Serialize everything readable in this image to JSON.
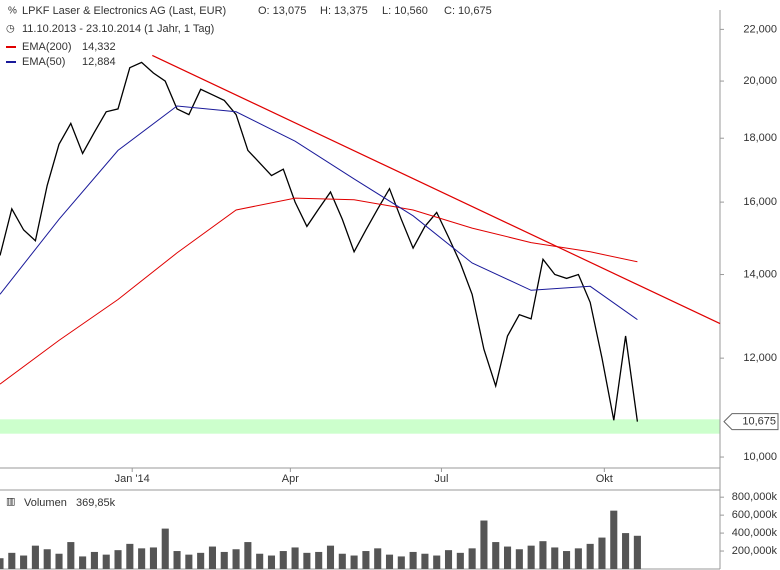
{
  "chart_data": [
    {
      "type": "line",
      "title": "LPKF Laser & Electronics AG (Last, EUR)",
      "quote": [
        "O: 13,075",
        "H: 13,375",
        "L: 10,560",
        "C: 10,675"
      ],
      "period": "11.10.2013 - 23.10.2014 (1 Jahr, 1 Tag)",
      "log_scale": true,
      "xlim": [
        0,
        61
      ],
      "ylim": [
        9800,
        22800
      ],
      "xticks": [
        {
          "value": 11.2,
          "label": "Jan '14"
        },
        {
          "value": 24.6,
          "label": "Apr"
        },
        {
          "value": 37.4,
          "label": "Jul"
        },
        {
          "value": 51.2,
          "label": "Okt"
        }
      ],
      "yticks": [
        {
          "value": 10000,
          "label": "10,000"
        },
        {
          "value": 12000,
          "label": "12,000"
        },
        {
          "value": 14000,
          "label": "14,000"
        },
        {
          "value": 16000,
          "label": "16,000"
        },
        {
          "value": 18000,
          "label": "18,000"
        },
        {
          "value": 20000,
          "label": "20,000"
        },
        {
          "value": 22000,
          "label": "22,000"
        }
      ],
      "series": [
        {
          "color": "#000000",
          "x": [
            0,
            1,
            2,
            3,
            4,
            5,
            6,
            7,
            8,
            9,
            10,
            11,
            12,
            13,
            14,
            15,
            16,
            17,
            18,
            19,
            20,
            21,
            22,
            23,
            24,
            25,
            26,
            27,
            28,
            29,
            30,
            31,
            32,
            33,
            34,
            35,
            36,
            37,
            38,
            39,
            40,
            41,
            42,
            43,
            44,
            45,
            46,
            47,
            48,
            49,
            50,
            51,
            52,
            53,
            54
          ],
          "values": [
            14500,
            15800,
            15200,
            14900,
            16500,
            17800,
            18500,
            17500,
            18200,
            18900,
            19000,
            20500,
            20700,
            20300,
            20000,
            19000,
            18800,
            19700,
            19500,
            19300,
            18800,
            17600,
            17200,
            16800,
            17000,
            16000,
            15300,
            15800,
            16300,
            15500,
            14600,
            15200,
            15800,
            16400,
            15500,
            14700,
            15300,
            15700,
            15000,
            14300,
            13500,
            12200,
            11400,
            12500,
            13000,
            12900,
            14400,
            14000,
            13900,
            14000,
            13300,
            12000,
            10700,
            12500,
            10675
          ]
        },
        {
          "name": "EMA(200)",
          "color": "#e00000",
          "last": 14332,
          "last_label": "14,332",
          "x": [
            0,
            5,
            10,
            15,
            20,
            25,
            30,
            35,
            40,
            45,
            50,
            54
          ],
          "values": [
            11440,
            12400,
            13370,
            14570,
            15770,
            16120,
            16070,
            15770,
            15250,
            14850,
            14600,
            14332
          ]
        },
        {
          "name": "EMA(50)",
          "color": "#1a1a9a",
          "last": 12884,
          "last_label": "12,884",
          "x": [
            0,
            5,
            10,
            15,
            20,
            25,
            30,
            35,
            40,
            45,
            50,
            54
          ],
          "values": [
            13500,
            15500,
            17600,
            19100,
            18900,
            17900,
            16700,
            15600,
            14300,
            13600,
            13700,
            12884
          ]
        }
      ],
      "trendline": {
        "color": "#e00000",
        "x": [
          12.9,
          61
        ],
        "values": [
          20970,
          12790
        ]
      },
      "support_band": {
        "color": "#ccffcc",
        "values": [
          10440,
          10720
        ]
      },
      "last_price": {
        "value": 10675,
        "label": "10,675"
      }
    },
    {
      "type": "bar",
      "title": "Volumen",
      "subtitle": "369,85k",
      "color": "#555555",
      "xlim": [
        0,
        61
      ],
      "ylim": [
        0,
        880
      ],
      "yticks": [
        {
          "value": 200,
          "label": "200,000k"
        },
        {
          "value": 400,
          "label": "400,000k"
        },
        {
          "value": 600,
          "label": "600,000k"
        },
        {
          "value": 800,
          "label": "800,000k"
        }
      ],
      "x": [
        0,
        1,
        2,
        3,
        4,
        5,
        6,
        7,
        8,
        9,
        10,
        11,
        12,
        13,
        14,
        15,
        16,
        17,
        18,
        19,
        20,
        21,
        22,
        23,
        24,
        25,
        26,
        27,
        28,
        29,
        30,
        31,
        32,
        33,
        34,
        35,
        36,
        37,
        38,
        39,
        40,
        41,
        42,
        43,
        44,
        45,
        46,
        47,
        48,
        49,
        50,
        51,
        52,
        53,
        54
      ],
      "values": [
        120,
        180,
        150,
        260,
        220,
        170,
        300,
        140,
        190,
        160,
        210,
        280,
        230,
        240,
        450,
        200,
        160,
        180,
        250,
        190,
        220,
        300,
        170,
        150,
        200,
        240,
        180,
        190,
        260,
        170,
        150,
        200,
        230,
        160,
        140,
        190,
        170,
        150,
        210,
        180,
        230,
        540,
        300,
        250,
        220,
        260,
        310,
        240,
        200,
        230,
        280,
        350,
        650,
        400,
        370
      ]
    }
  ]
}
